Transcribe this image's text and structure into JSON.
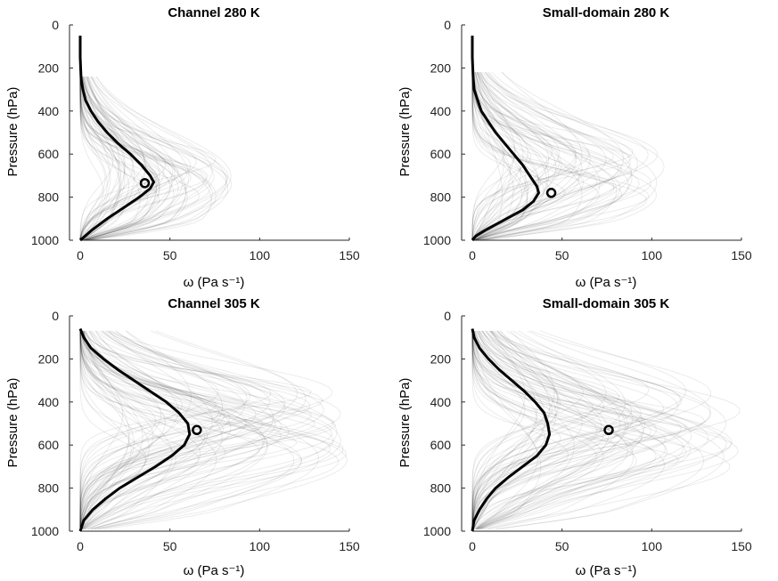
{
  "chart_data": [
    {
      "type": "line",
      "title": "Channel 280 K",
      "xlabel": "ω (Pa s⁻¹)",
      "ylabel": "Pressure (hPa)",
      "xlim": [
        0,
        150
      ],
      "ylim": [
        0,
        1000
      ],
      "y_reversed": true,
      "xticks": [
        "0",
        "50",
        "100",
        "150"
      ],
      "yticks": [
        "0",
        "200",
        "400",
        "600",
        "800",
        "1000"
      ],
      "mean_profile": {
        "pressure": [
          50,
          150,
          250,
          300,
          350,
          400,
          450,
          500,
          550,
          600,
          650,
          700,
          730,
          760,
          800,
          850,
          900,
          950,
          1000
        ],
        "omega": [
          0,
          0,
          0.5,
          1.5,
          3,
          6,
          10,
          15,
          21,
          28,
          34,
          39,
          41,
          39,
          33,
          24,
          15,
          7,
          0
        ]
      },
      "marker": {
        "omega": 36,
        "pressure": 735
      },
      "ensemble": {
        "peak_pressure": 720,
        "spread_pressure": 160,
        "omega_max": 85,
        "count": 70,
        "top_pressure": 240
      }
    },
    {
      "type": "line",
      "title": "Small-domain 280 K",
      "xlabel": "ω (Pa s⁻¹)",
      "ylabel": "Pressure (hPa)",
      "xlim": [
        0,
        150
      ],
      "ylim": [
        0,
        1000
      ],
      "y_reversed": true,
      "xticks": [
        "0",
        "50",
        "100",
        "150"
      ],
      "yticks": [
        "0",
        "200",
        "400",
        "600",
        "800",
        "1000"
      ],
      "mean_profile": {
        "pressure": [
          50,
          150,
          250,
          300,
          350,
          400,
          450,
          500,
          550,
          600,
          650,
          700,
          750,
          780,
          820,
          860,
          900,
          950,
          980,
          1000
        ],
        "omega": [
          0,
          0,
          0.5,
          1,
          3,
          5,
          9,
          13,
          18,
          23,
          28,
          32,
          36,
          37,
          34,
          28,
          19,
          8,
          2,
          0
        ]
      },
      "marker": {
        "omega": 44,
        "pressure": 780
      },
      "ensemble": {
        "peak_pressure": 700,
        "spread_pressure": 200,
        "omega_max": 110,
        "count": 70,
        "top_pressure": 220
      }
    },
    {
      "type": "line",
      "title": "Channel 305 K",
      "xlabel": "ω (Pa s⁻¹)",
      "ylabel": "Pressure (hPa)",
      "xlim": [
        0,
        150
      ],
      "ylim": [
        0,
        1000
      ],
      "y_reversed": true,
      "xticks": [
        "0",
        "50",
        "100",
        "150"
      ],
      "yticks": [
        "0",
        "200",
        "400",
        "600",
        "800",
        "1000"
      ],
      "mean_profile": {
        "pressure": [
          60,
          100,
          150,
          200,
          250,
          300,
          350,
          400,
          450,
          500,
          550,
          600,
          650,
          700,
          750,
          800,
          850,
          900,
          950,
          1000
        ],
        "omega": [
          0,
          2,
          6,
          13,
          21,
          30,
          39,
          48,
          55,
          60,
          61,
          58,
          51,
          42,
          32,
          22,
          14,
          7,
          2,
          0
        ]
      },
      "marker": {
        "omega": 65,
        "pressure": 530
      },
      "ensemble": {
        "peak_pressure": 520,
        "spread_pressure": 280,
        "omega_max": 150,
        "count": 80,
        "top_pressure": 70
      }
    },
    {
      "type": "line",
      "title": "Small-domain 305 K",
      "xlabel": "ω (Pa s⁻¹)",
      "ylabel": "Pressure (hPa)",
      "xlim": [
        0,
        150
      ],
      "ylim": [
        0,
        1000
      ],
      "y_reversed": true,
      "xticks": [
        "0",
        "50",
        "100",
        "150"
      ],
      "yticks": [
        "0",
        "200",
        "400",
        "600",
        "800",
        "1000"
      ],
      "mean_profile": {
        "pressure": [
          60,
          100,
          150,
          200,
          250,
          300,
          350,
          400,
          450,
          500,
          550,
          600,
          650,
          700,
          750,
          800,
          850,
          900,
          950,
          1000
        ],
        "omega": [
          0,
          1,
          4,
          9,
          15,
          22,
          29,
          35,
          40,
          42,
          43,
          41,
          36,
          28,
          20,
          13,
          8,
          4,
          1,
          0
        ]
      },
      "marker": {
        "omega": 76,
        "pressure": 530
      },
      "ensemble": {
        "peak_pressure": 520,
        "spread_pressure": 300,
        "omega_max": 150,
        "count": 80,
        "top_pressure": 70
      }
    }
  ]
}
